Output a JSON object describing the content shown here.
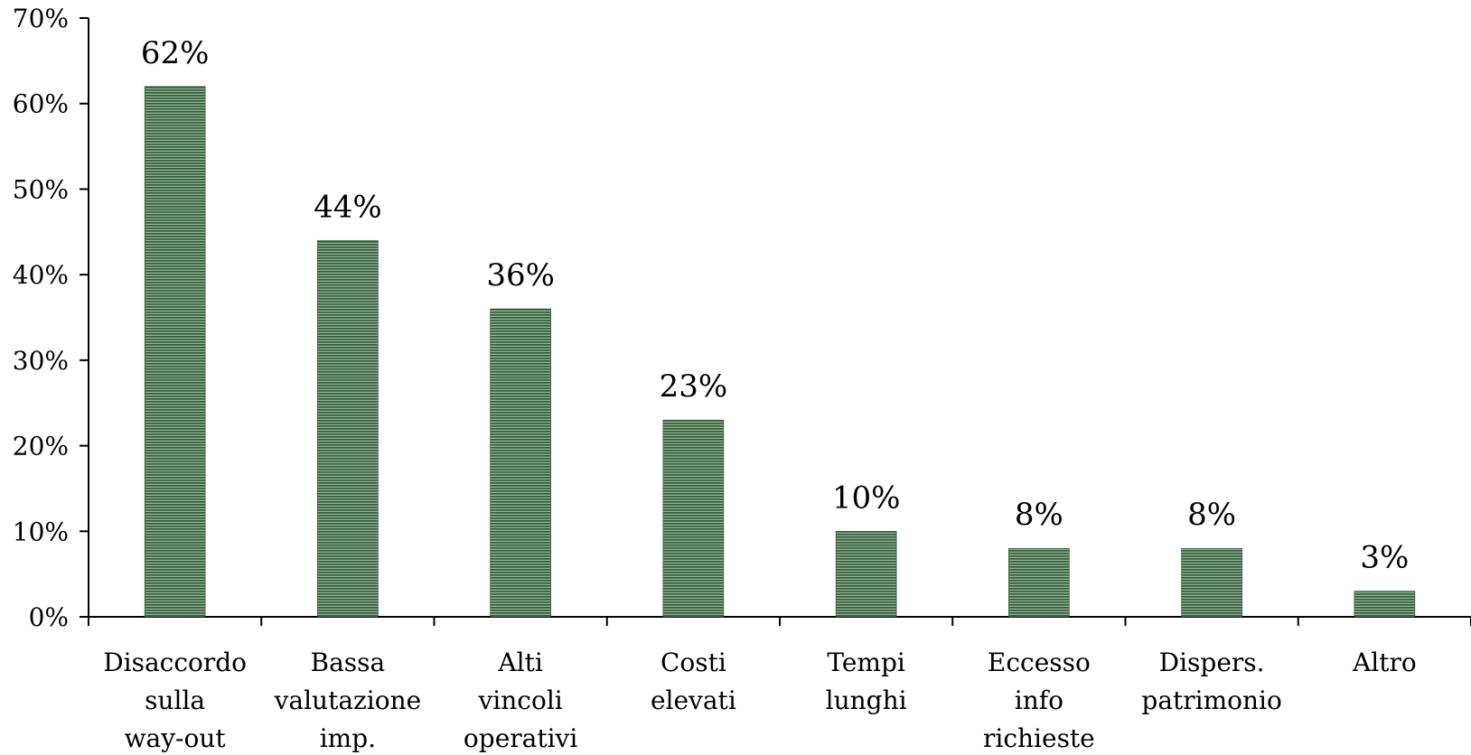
{
  "chart_data": {
    "type": "bar",
    "categories": [
      [
        "Disaccordo",
        "sulla",
        "way-out"
      ],
      [
        "Bassa",
        "valutazione",
        "imp."
      ],
      [
        "Alti",
        "vincoli",
        "operativi"
      ],
      [
        "Costi",
        "elevati"
      ],
      [
        "Tempi",
        "lunghi"
      ],
      [
        "Eccesso",
        "info",
        "richieste"
      ],
      [
        "Dispers.",
        "patrimonio"
      ],
      [
        "Altro"
      ]
    ],
    "values": [
      62,
      44,
      36,
      23,
      10,
      8,
      8,
      3
    ],
    "data_labels": [
      "62%",
      "44%",
      "36%",
      "23%",
      "10%",
      "8%",
      "8%",
      "3%"
    ],
    "y_ticks": [
      "0%",
      "10%",
      "20%",
      "30%",
      "40%",
      "50%",
      "60%",
      "70%"
    ],
    "ylim": [
      0,
      70
    ],
    "grid": false,
    "legend": "none",
    "colors": {
      "bar_dark": "#1f4a26",
      "bar_light": "#8fb08f",
      "axis": "#000000"
    }
  }
}
